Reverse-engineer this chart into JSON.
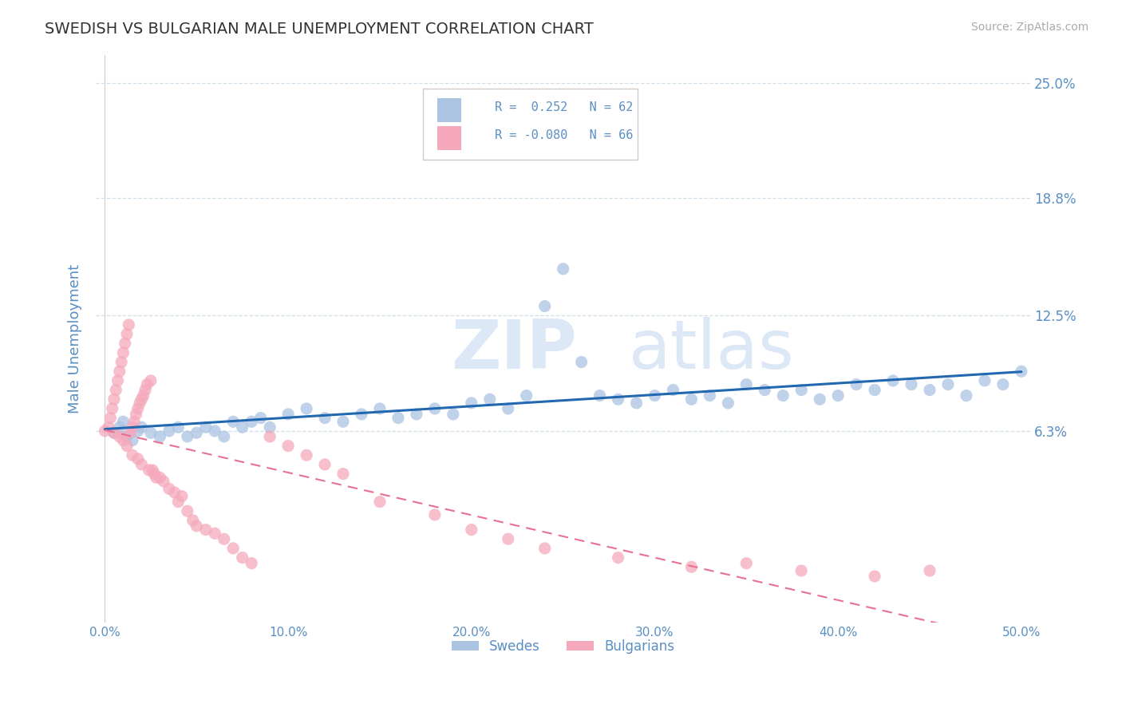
{
  "title": "SWEDISH VS BULGARIAN MALE UNEMPLOYMENT CORRELATION CHART",
  "source": "Source: ZipAtlas.com",
  "ylabel": "Male Unemployment",
  "xlim": [
    -0.005,
    0.505
  ],
  "ylim": [
    -0.04,
    0.265
  ],
  "yticks": [
    0.063,
    0.125,
    0.188,
    0.25
  ],
  "ytick_labels": [
    "6.3%",
    "12.5%",
    "18.8%",
    "25.0%"
  ],
  "xticks": [
    0.0,
    0.1,
    0.2,
    0.3,
    0.4,
    0.5
  ],
  "xtick_labels": [
    "0.0%",
    "10.0%",
    "20.0%",
    "30.0%",
    "40.0%",
    "50.0%"
  ],
  "swedish_color": "#aac4e2",
  "bulgarian_color": "#f5a8bc",
  "swedish_line_color": "#2268b0",
  "bulgarian_line_color": "#e87090",
  "R_swedish": 0.252,
  "N_swedish": 62,
  "R_bulgarian": -0.08,
  "N_bulgarian": 66,
  "background_color": "#ffffff",
  "watermark_zip": "ZIP",
  "watermark_atlas": "atlas",
  "watermark_color": "#dce8f5",
  "title_color": "#333333",
  "axis_label_color": "#5a8fc4",
  "tick_color": "#5a8fc4",
  "grid_color": "#d0dfe8",
  "legend_label_swedes": "Swedes",
  "legend_label_bulgarians": "Bulgarians",
  "swedish_scatter_x": [
    0.005,
    0.008,
    0.01,
    0.012,
    0.015,
    0.018,
    0.02,
    0.025,
    0.03,
    0.035,
    0.04,
    0.045,
    0.05,
    0.055,
    0.06,
    0.065,
    0.07,
    0.075,
    0.08,
    0.085,
    0.09,
    0.1,
    0.11,
    0.12,
    0.13,
    0.14,
    0.15,
    0.16,
    0.17,
    0.18,
    0.19,
    0.2,
    0.21,
    0.22,
    0.23,
    0.24,
    0.25,
    0.26,
    0.27,
    0.28,
    0.29,
    0.3,
    0.31,
    0.32,
    0.33,
    0.34,
    0.35,
    0.36,
    0.37,
    0.38,
    0.39,
    0.4,
    0.41,
    0.42,
    0.43,
    0.44,
    0.45,
    0.46,
    0.47,
    0.48,
    0.49,
    0.5
  ],
  "swedish_scatter_y": [
    0.062,
    0.065,
    0.068,
    0.06,
    0.058,
    0.063,
    0.065,
    0.062,
    0.06,
    0.063,
    0.065,
    0.06,
    0.062,
    0.065,
    0.063,
    0.06,
    0.068,
    0.065,
    0.068,
    0.07,
    0.065,
    0.072,
    0.075,
    0.07,
    0.068,
    0.072,
    0.075,
    0.07,
    0.072,
    0.075,
    0.072,
    0.078,
    0.08,
    0.075,
    0.082,
    0.13,
    0.15,
    0.1,
    0.082,
    0.08,
    0.078,
    0.082,
    0.085,
    0.08,
    0.082,
    0.078,
    0.088,
    0.085,
    0.082,
    0.085,
    0.08,
    0.082,
    0.088,
    0.085,
    0.09,
    0.088,
    0.085,
    0.088,
    0.082,
    0.09,
    0.088,
    0.095
  ],
  "bulgarian_scatter_x": [
    0.0,
    0.002,
    0.003,
    0.004,
    0.005,
    0.005,
    0.006,
    0.007,
    0.008,
    0.008,
    0.009,
    0.01,
    0.01,
    0.011,
    0.012,
    0.012,
    0.013,
    0.014,
    0.015,
    0.015,
    0.016,
    0.017,
    0.018,
    0.018,
    0.019,
    0.02,
    0.02,
    0.021,
    0.022,
    0.023,
    0.024,
    0.025,
    0.026,
    0.027,
    0.028,
    0.03,
    0.032,
    0.035,
    0.038,
    0.04,
    0.042,
    0.045,
    0.048,
    0.05,
    0.055,
    0.06,
    0.065,
    0.07,
    0.075,
    0.08,
    0.09,
    0.1,
    0.11,
    0.12,
    0.13,
    0.15,
    0.18,
    0.2,
    0.22,
    0.24,
    0.28,
    0.32,
    0.35,
    0.38,
    0.42,
    0.45
  ],
  "bulgarian_scatter_y": [
    0.063,
    0.065,
    0.07,
    0.075,
    0.08,
    0.062,
    0.085,
    0.09,
    0.095,
    0.06,
    0.1,
    0.105,
    0.058,
    0.11,
    0.115,
    0.055,
    0.12,
    0.062,
    0.065,
    0.05,
    0.068,
    0.072,
    0.075,
    0.048,
    0.078,
    0.08,
    0.045,
    0.082,
    0.085,
    0.088,
    0.042,
    0.09,
    0.042,
    0.04,
    0.038,
    0.038,
    0.036,
    0.032,
    0.03,
    0.025,
    0.028,
    0.02,
    0.015,
    0.012,
    0.01,
    0.008,
    0.005,
    0.0,
    -0.005,
    -0.008,
    0.06,
    0.055,
    0.05,
    0.045,
    0.04,
    0.025,
    0.018,
    0.01,
    0.005,
    0.0,
    -0.005,
    -0.01,
    -0.008,
    -0.012,
    -0.015,
    -0.012
  ]
}
